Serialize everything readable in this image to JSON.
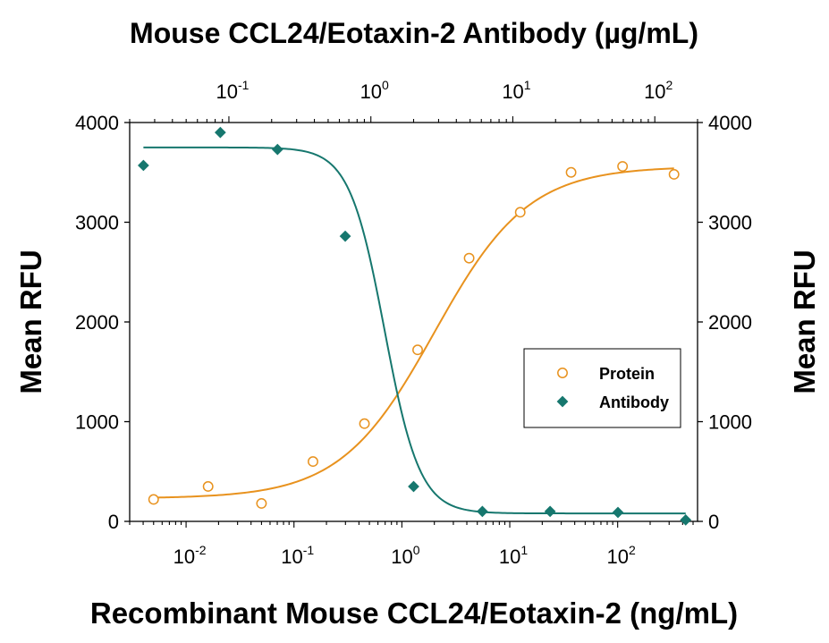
{
  "chart_data": {
    "type": "scatter",
    "title": "Mouse CCL24/Eotaxin-2 Antibody (µg/mL)",
    "xlabel": "Recombinant Mouse CCL24/Eotaxin-2 (ng/mL)",
    "ylabel": "Mean RFU",
    "ylabel_right": "Mean RFU",
    "x_scale": "log",
    "xlim": [
      0.003,
      550
    ],
    "x_top_scale": "log",
    "x_top_lim": [
      0.02,
      200
    ],
    "ylim": [
      0,
      4000
    ],
    "y_ticks": [
      0,
      1000,
      2000,
      3000,
      4000
    ],
    "x_ticks": [
      {
        "value": 0.01,
        "base": "10",
        "exp": "-2"
      },
      {
        "value": 0.1,
        "base": "10",
        "exp": "-1"
      },
      {
        "value": 1,
        "base": "10",
        "exp": "0"
      },
      {
        "value": 10,
        "base": "10",
        "exp": "1"
      },
      {
        "value": 100,
        "base": "10",
        "exp": "2"
      }
    ],
    "x_top_ticks": [
      {
        "value": 0.1,
        "base": "10",
        "exp": "-1"
      },
      {
        "value": 1,
        "base": "10",
        "exp": "0"
      },
      {
        "value": 10,
        "base": "10",
        "exp": "1"
      },
      {
        "value": 100,
        "base": "10",
        "exp": "2"
      }
    ],
    "legend_position": "center-right",
    "series": [
      {
        "name": "Protein",
        "axis": "bottom",
        "color": "#E8921E",
        "marker": "open-circle",
        "x": [
          0.005,
          0.016,
          0.05,
          0.15,
          0.45,
          1.4,
          4.2,
          12.5,
          37,
          111,
          333
        ],
        "y": [
          220,
          350,
          180,
          600,
          980,
          1720,
          2640,
          3100,
          3500,
          3560,
          3480
        ],
        "fit": {
          "bottom": 230,
          "top": 3560,
          "ec50": 2.0,
          "hill": 1.0
        }
      },
      {
        "name": "Antibody",
        "axis": "top",
        "color": "#16776E",
        "marker": "filled-diamond",
        "x": [
          0.025,
          0.087,
          0.22,
          0.66,
          2.0,
          6.1,
          18.3,
          55,
          165
        ],
        "y": [
          3570,
          3900,
          3730,
          2860,
          350,
          100,
          100,
          90,
          15
        ],
        "fit": {
          "bottom": 80,
          "top": 3750,
          "ec50": 1.25,
          "hill": 3.5
        }
      }
    ],
    "grid": false
  }
}
